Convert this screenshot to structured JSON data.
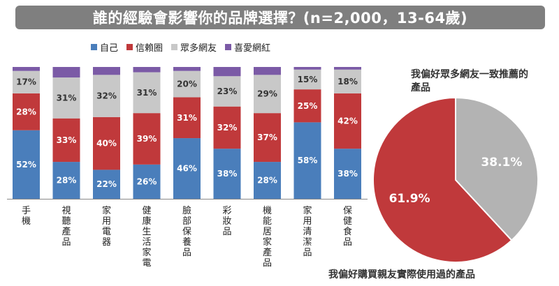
{
  "title": "誰的經驗會影響你的品牌選擇？(n=2,000，13-64歲)",
  "colors": {
    "self": "#4a7ebb",
    "trusted": "#c0393b",
    "netizen": "#c8c8c8",
    "influencer": "#7b5aa6",
    "pie_red": "#c0393b",
    "pie_gray": "#b3b3b3"
  },
  "legend": [
    {
      "label": "自己",
      "color": "#4a7ebb"
    },
    {
      "label": "信賴圈",
      "color": "#c0393b"
    },
    {
      "label": "眾多網友",
      "color": "#c8c8c8"
    },
    {
      "label": "喜愛網紅",
      "color": "#7b5aa6"
    }
  ],
  "chart_data": [
    {
      "type": "bar",
      "stacked": true,
      "categories": [
        "手機",
        "視聽產品",
        "家用電器",
        "健康生活家電",
        "臉部保養品",
        "彩妝品",
        "機能居家產品",
        "家用清潔品",
        "保健食品"
      ],
      "series": [
        {
          "name": "自己",
          "values": [
            52,
            28,
            22,
            26,
            46,
            38,
            28,
            58,
            38
          ],
          "labels": [
            "52%",
            "28%",
            "22%",
            "26%",
            "46%",
            "38%",
            "28%",
            "58%",
            "38%"
          ]
        },
        {
          "name": "信賴圈",
          "values": [
            28,
            33,
            40,
            39,
            31,
            32,
            37,
            25,
            42
          ],
          "labels": [
            "28%",
            "33%",
            "40%",
            "39%",
            "31%",
            "32%",
            "37%",
            "25%",
            "42%"
          ]
        },
        {
          "name": "眾多網友",
          "values": [
            17,
            31,
            32,
            31,
            20,
            23,
            29,
            15,
            18
          ],
          "labels": [
            "17%",
            "31%",
            "32%",
            "31%",
            "20%",
            "23%",
            "29%",
            "15%",
            "18%"
          ]
        },
        {
          "name": "喜愛網紅",
          "values": [
            3,
            8,
            6,
            4,
            3,
            7,
            6,
            2,
            2
          ]
        }
      ],
      "ylim": [
        0,
        100
      ]
    },
    {
      "type": "pie",
      "slices": [
        {
          "label": "我偏好眾多網友一致推薦的產品",
          "value": 38.1,
          "value_label": "38.1%"
        },
        {
          "label": "我偏好購買親友實際使用過的產品",
          "value": 61.9,
          "value_label": "61.9%"
        }
      ]
    }
  ]
}
